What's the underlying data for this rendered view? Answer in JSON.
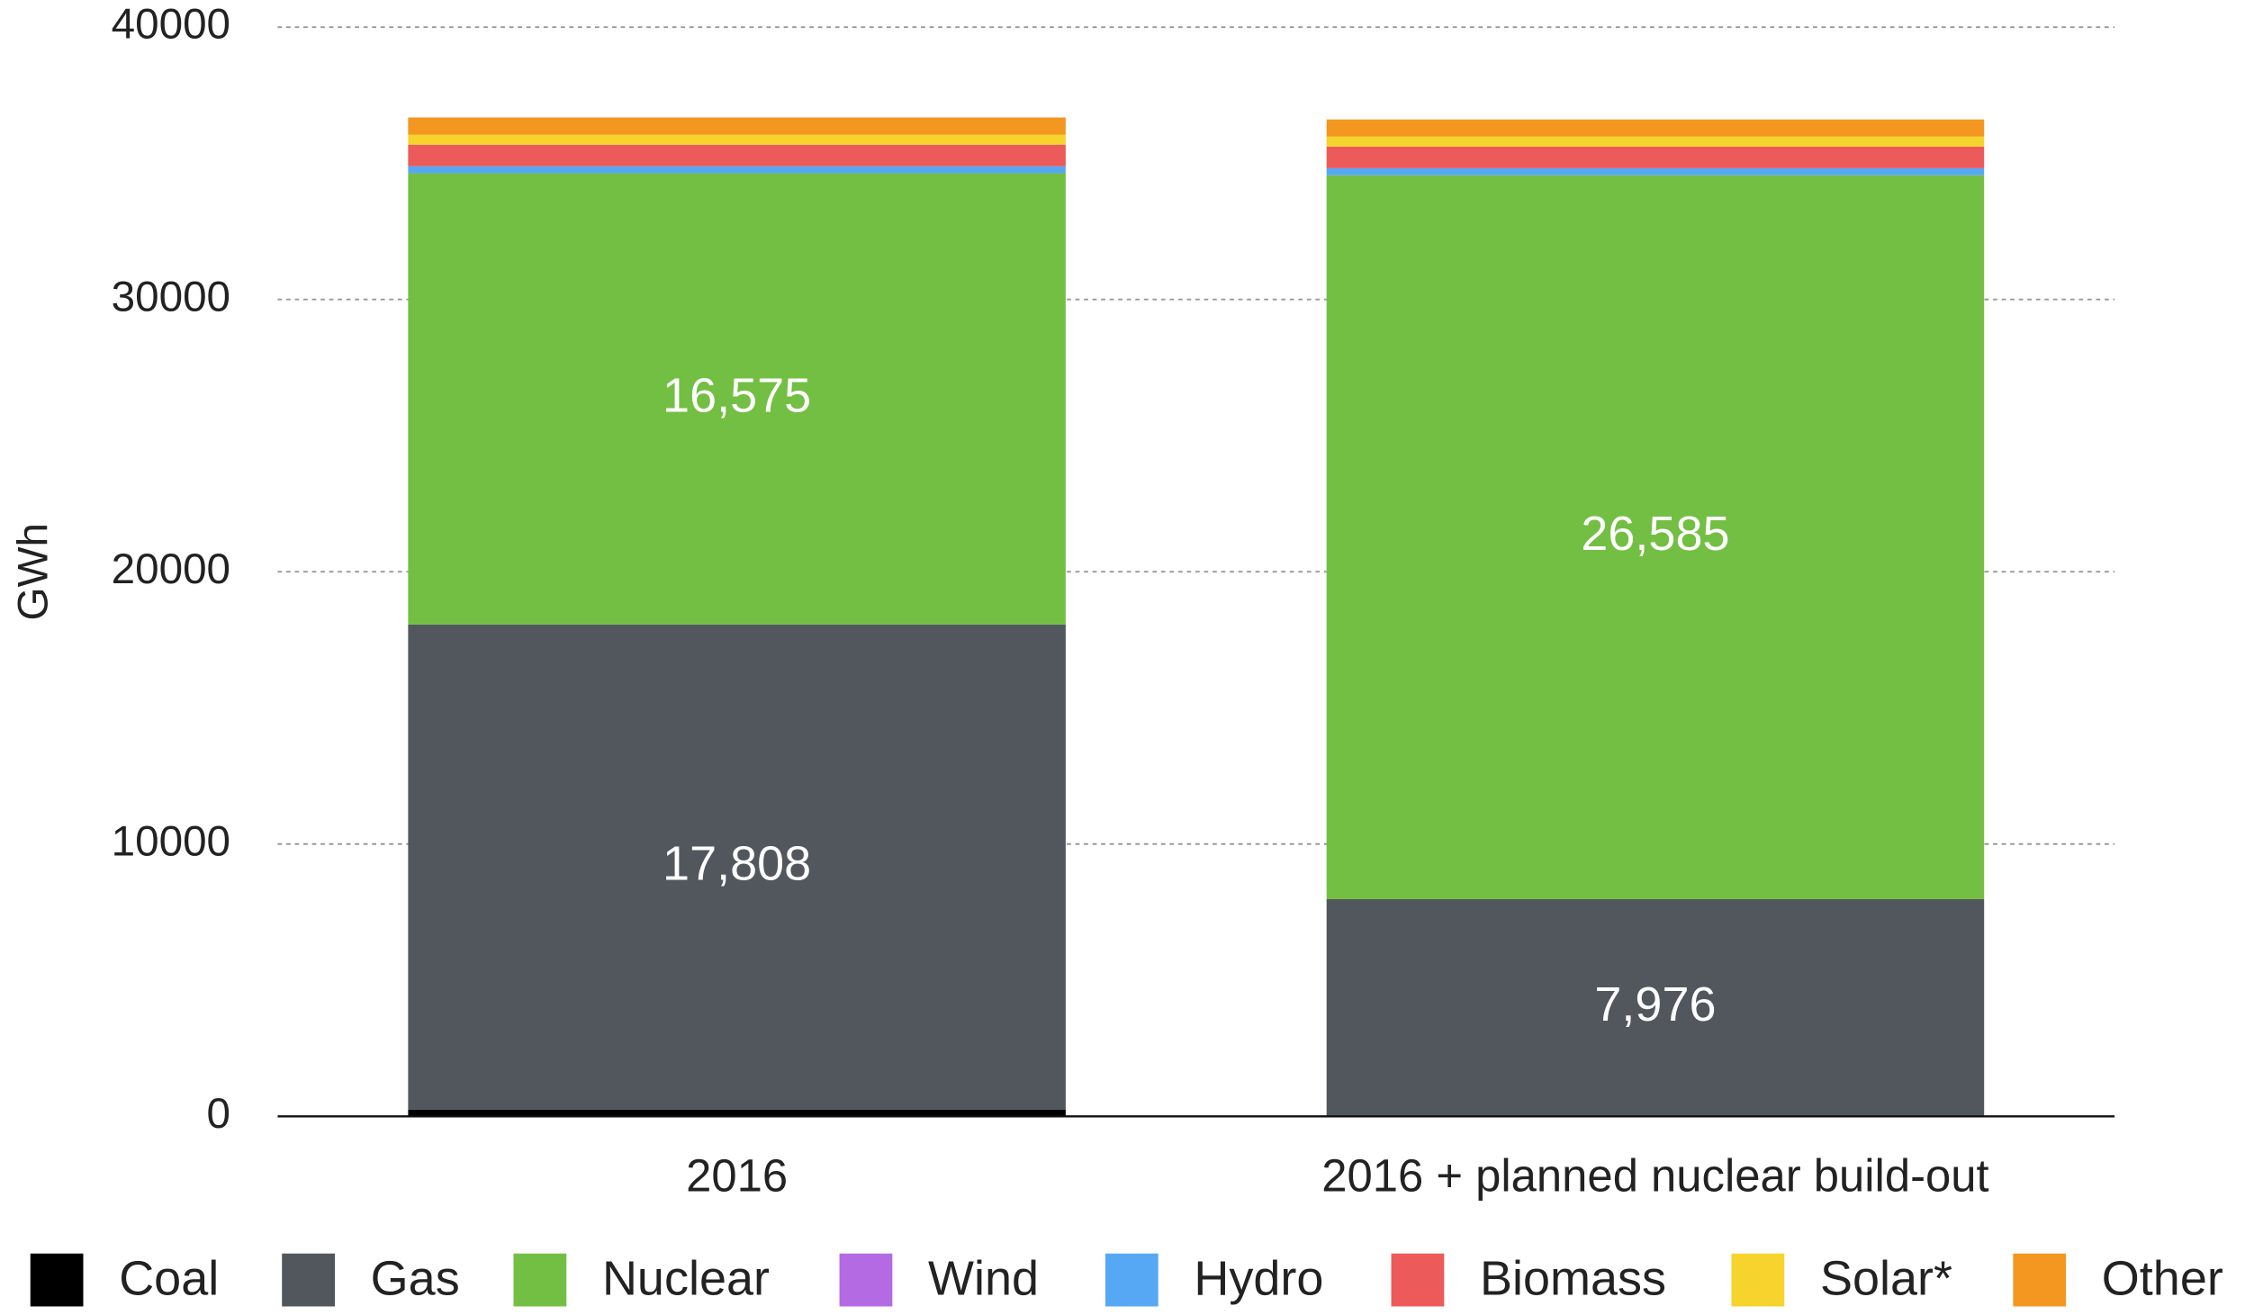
{
  "chart_data": {
    "type": "stacked_bar",
    "y_label": "GWh",
    "categories": [
      "2016",
      "2016 + planned nuclear build-out"
    ],
    "series": [
      {
        "name": "Coal",
        "color": "#000000",
        "values": [
          250,
          0
        ]
      },
      {
        "name": "Gas",
        "color": "#52575e",
        "values": [
          17808,
          7976
        ],
        "value_labels": [
          "17,808",
          "7,976"
        ]
      },
      {
        "name": "Nuclear",
        "color": "#73bf43",
        "values": [
          16575,
          26585
        ],
        "value_labels": [
          "16,575",
          "26,585"
        ]
      },
      {
        "name": "Wind",
        "color": "#b36ae2",
        "values": [
          0,
          0
        ]
      },
      {
        "name": "Hydro",
        "color": "#56a8f5",
        "values": [
          260,
          260
        ]
      },
      {
        "name": "Biomass",
        "color": "#ec5a5a",
        "values": [
          790,
          790
        ]
      },
      {
        "name": "Solar*",
        "color": "#f6d32d",
        "values": [
          370,
          370
        ]
      },
      {
        "name": "Other",
        "color": "#f39720",
        "values": [
          630,
          630
        ]
      }
    ],
    "ylim": [
      0,
      40000
    ],
    "yticks": [
      0,
      10000,
      20000,
      30000,
      40000
    ],
    "grid": true,
    "legend": "bottom"
  }
}
